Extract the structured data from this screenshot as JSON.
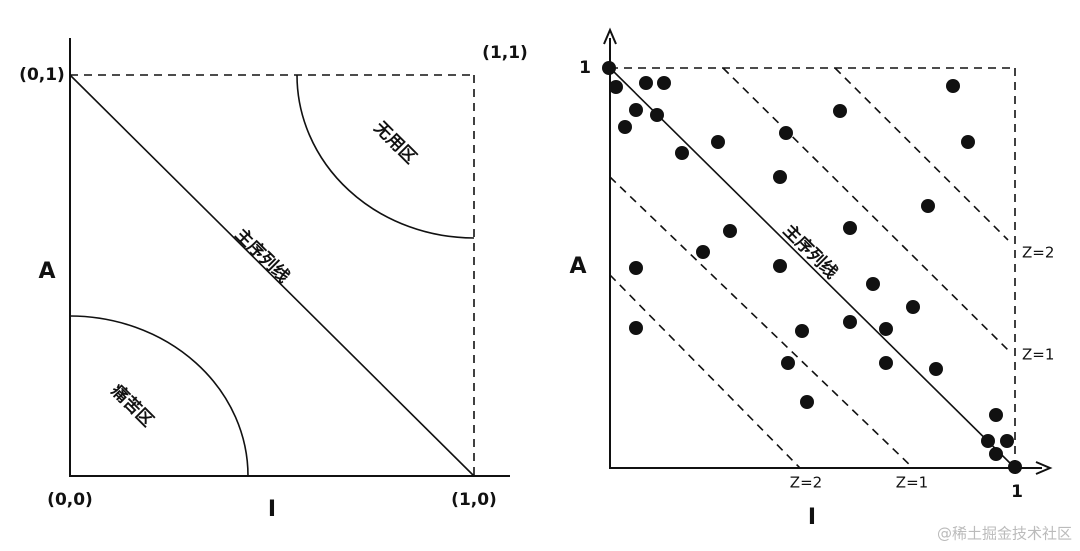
{
  "left": {
    "corner_top_left": "(0,1)",
    "corner_top_right": "(1,1)",
    "corner_bottom_left": "(0,0)",
    "corner_bottom_right": "(1,0)",
    "y_label": "A",
    "x_label": "I",
    "zone_useless": "无用区",
    "main_sequence": "主序列线",
    "zone_pain": "痛苦区"
  },
  "right": {
    "y_max": "1",
    "x_max": "1",
    "y_label": "A",
    "x_label": "I",
    "main_sequence": "主序列线",
    "upper_z2": "Z=2",
    "upper_z1": "Z=1",
    "lower_z2": "Z=2",
    "lower_z1": "Z=1"
  },
  "watermark": "@稀土掘金技术社区"
}
